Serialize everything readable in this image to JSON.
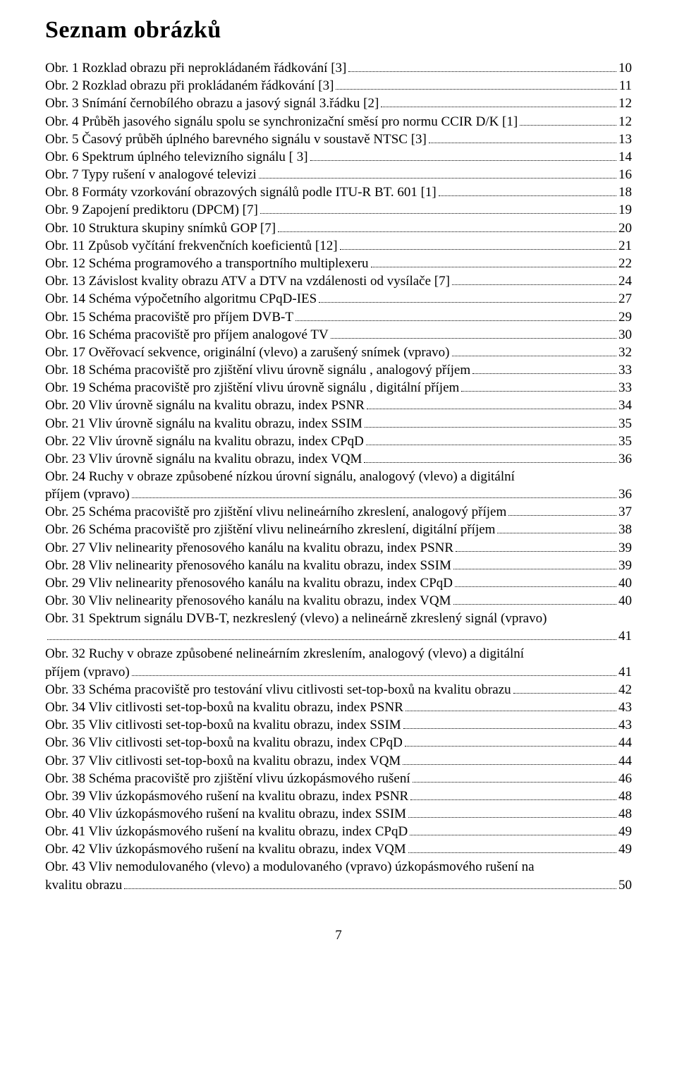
{
  "title": "Seznam obrázků",
  "page_number": "7",
  "entries": [
    {
      "label": "Obr. 1 Rozklad obrazu při neprokládaném řádkování [3]",
      "page": "10"
    },
    {
      "label": "Obr. 2 Rozklad obrazu při prokládaném řádkování [3]",
      "page": "11"
    },
    {
      "label": "Obr. 3 Snímání černobílého obrazu a jasový signál 3.řádku [2]",
      "page": "12"
    },
    {
      "label": "Obr. 4 Průběh jasového signálu spolu se synchronizační směsí pro normu CCIR D/K [1]",
      "page": "12"
    },
    {
      "label": "Obr. 5 Časový průběh úplného barevného signálu v soustavě NTSC [3]",
      "page": "13"
    },
    {
      "label": "Obr. 6 Spektrum úplného televizního signálu [ 3]",
      "page": "14"
    },
    {
      "label": "Obr. 7 Typy rušení v analogové televizi",
      "page": "16"
    },
    {
      "label": "Obr. 8 Formáty vzorkování obrazových signálů podle ITU-R BT. 601 [1]",
      "page": "18"
    },
    {
      "label": "Obr. 9 Zapojení prediktoru (DPCM) [7]",
      "page": "19"
    },
    {
      "label": "Obr. 10 Struktura skupiny snímků GOP [7]",
      "page": "20"
    },
    {
      "label": "Obr. 11 Způsob vyčítání frekvenčních koeficientů [12]",
      "page": "21"
    },
    {
      "label": "Obr. 12 Schéma programového a transportního multiplexeru",
      "page": "22"
    },
    {
      "label": "Obr. 13 Závislost kvality obrazu ATV a DTV na vzdálenosti od vysílače [7]",
      "page": "24"
    },
    {
      "label": "Obr. 14 Schéma výpočetního algoritmu CPqD-IES",
      "page": "27"
    },
    {
      "label": "Obr. 15 Schéma pracoviště pro příjem DVB-T",
      "page": "29"
    },
    {
      "label": "Obr. 16 Schéma pracoviště pro příjem analogové TV",
      "page": "30"
    },
    {
      "label": "Obr. 17 Ověřovací sekvence, originální (vlevo) a zarušený snímek (vpravo)",
      "page": "32"
    },
    {
      "label": "Obr. 18 Schéma pracoviště pro zjištění vlivu úrovně signálu , analogový příjem",
      "page": "33"
    },
    {
      "label": "Obr. 19 Schéma pracoviště pro zjištění vlivu úrovně signálu , digitální příjem",
      "page": "33"
    },
    {
      "label": "Obr. 20 Vliv úrovně signálu na kvalitu obrazu, index PSNR",
      "page": "34"
    },
    {
      "label": "Obr. 21 Vliv úrovně signálu na kvalitu obrazu, index SSIM",
      "page": "35"
    },
    {
      "label": "Obr. 22 Vliv úrovně signálu na kvalitu obrazu, index CPqD",
      "page": "35"
    },
    {
      "label": "Obr. 23 Vliv úrovně signálu na kvalitu obrazu, index VQM",
      "page": "36"
    },
    {
      "label_lines": [
        "Obr. 24 Ruchy v obraze způsobené nízkou úrovní signálu, analogový (vlevo) a digitální",
        "příjem (vpravo)"
      ],
      "page": "36",
      "wrap": true
    },
    {
      "label": "Obr. 25 Schéma pracoviště pro zjištění vlivu nelineárního zkreslení, analogový příjem",
      "page": "37"
    },
    {
      "label": "Obr. 26 Schéma pracoviště pro zjištění vlivu nelineárního zkreslení, digitální příjem",
      "page": "38"
    },
    {
      "label": "Obr. 27 Vliv nelinearity přenosového kanálu na kvalitu obrazu, index PSNR",
      "page": "39"
    },
    {
      "label": "Obr. 28 Vliv nelinearity přenosového kanálu na kvalitu obrazu, index SSIM",
      "page": "39"
    },
    {
      "label": "Obr. 29 Vliv nelinearity přenosového kanálu na kvalitu obrazu, index CPqD",
      "page": "40"
    },
    {
      "label": "Obr. 30 Vliv nelinearity přenosového kanálu na kvalitu obrazu, index VQM",
      "page": "40"
    },
    {
      "label_lines": [
        "Obr. 31 Spektrum signálu DVB-T, nezkreslený (vlevo) a nelineárně zkreslený signál (vpravo)",
        ""
      ],
      "page": "41",
      "wrap": true
    },
    {
      "label_lines": [
        "Obr. 32 Ruchy v obraze způsobené nelineárním zkreslením, analogový (vlevo) a digitální",
        "příjem (vpravo)"
      ],
      "page": "41",
      "wrap": true
    },
    {
      "label": "Obr. 33 Schéma pracoviště pro testování vlivu citlivosti set-top-boxů na kvalitu obrazu",
      "page": "42"
    },
    {
      "label": "Obr. 34 Vliv citlivosti set-top-boxů na kvalitu obrazu, index PSNR",
      "page": "43"
    },
    {
      "label": "Obr. 35 Vliv citlivosti set-top-boxů na kvalitu obrazu, index SSIM",
      "page": "43"
    },
    {
      "label": "Obr. 36 Vliv citlivosti set-top-boxů na kvalitu obrazu, index CPqD",
      "page": "44"
    },
    {
      "label": "Obr. 37 Vliv citlivosti set-top-boxů na kvalitu obrazu, index  VQM",
      "page": "44"
    },
    {
      "label": "Obr. 38 Schéma pracoviště pro zjištění vlivu úzkopásmového rušení",
      "page": "46"
    },
    {
      "label": "Obr. 39 Vliv úzkopásmového rušení na kvalitu obrazu, index PSNR",
      "page": "48"
    },
    {
      "label": "Obr. 40 Vliv úzkopásmového rušení na kvalitu obrazu, index SSIM",
      "page": "48"
    },
    {
      "label": "Obr. 41 Vliv úzkopásmového rušení na kvalitu obrazu, index CPqD",
      "page": "49"
    },
    {
      "label": "Obr. 42 Vliv úzkopásmového rušení na kvalitu obrazu, index VQM",
      "page": "49"
    },
    {
      "label_lines": [
        "Obr. 43 Vliv nemodulovaného (vlevo) a modulovaného (vpravo) úzkopásmového rušení na",
        "kvalitu obrazu"
      ],
      "page": "50",
      "wrap": true
    }
  ]
}
